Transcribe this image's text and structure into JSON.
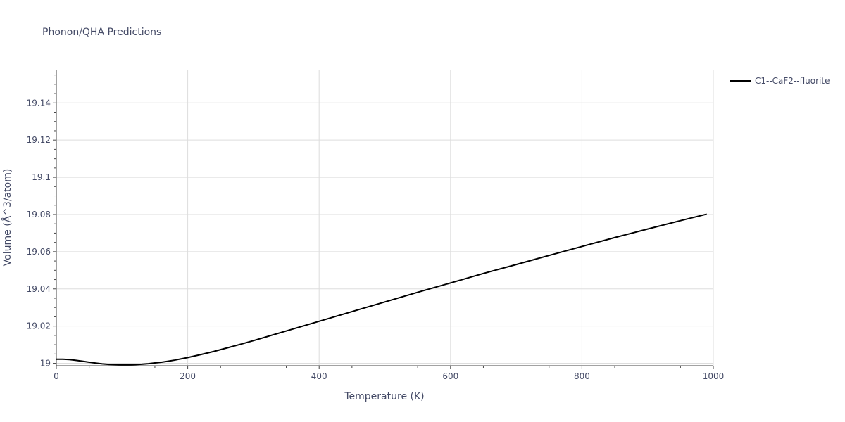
{
  "chart_data": {
    "type": "line",
    "title": "Phonon/QHA Predictions",
    "xlabel": "Temperature (K)",
    "ylabel": "Volume (Å^3/atom)",
    "xlim": [
      0,
      1000
    ],
    "ylim": [
      18.9987,
      19.1575
    ],
    "xticks": [
      0,
      200,
      400,
      600,
      800,
      1000
    ],
    "yticks": [
      19,
      19.02,
      19.04,
      19.06,
      19.08,
      19.1,
      19.12,
      19.14
    ],
    "ytick_labels": [
      "19",
      "19.02",
      "19.04",
      "19.06",
      "19.08",
      "19.1",
      "19.12",
      "19.14"
    ],
    "grid": true,
    "legend_position": "top-right",
    "series": [
      {
        "name": "C1--CaF2--fluorite",
        "color": "#000000",
        "x": [
          0,
          10,
          20,
          30,
          40,
          50,
          60,
          70,
          80,
          90,
          100,
          110,
          120,
          130,
          140,
          150,
          160,
          170,
          180,
          190,
          200,
          220,
          240,
          260,
          280,
          300,
          350,
          400,
          450,
          500,
          550,
          600,
          650,
          700,
          750,
          800,
          850,
          900,
          950,
          990
        ],
        "y": [
          19.0022,
          19.0022,
          19.002,
          19.0016,
          19.0011,
          19.0006,
          19.0001,
          18.9997,
          18.9994,
          18.9993,
          18.9992,
          18.9992,
          18.9993,
          18.9995,
          18.9998,
          19.0002,
          19.0006,
          19.0011,
          19.0017,
          19.0024,
          19.0031,
          19.0047,
          19.0064,
          19.0083,
          19.0102,
          19.0122,
          19.0174,
          19.0226,
          19.0278,
          19.033,
          19.0382,
          19.0432,
          19.0483,
          19.0531,
          19.058,
          19.0628,
          19.0676,
          19.0722,
          19.0767,
          19.0802
        ]
      }
    ]
  }
}
